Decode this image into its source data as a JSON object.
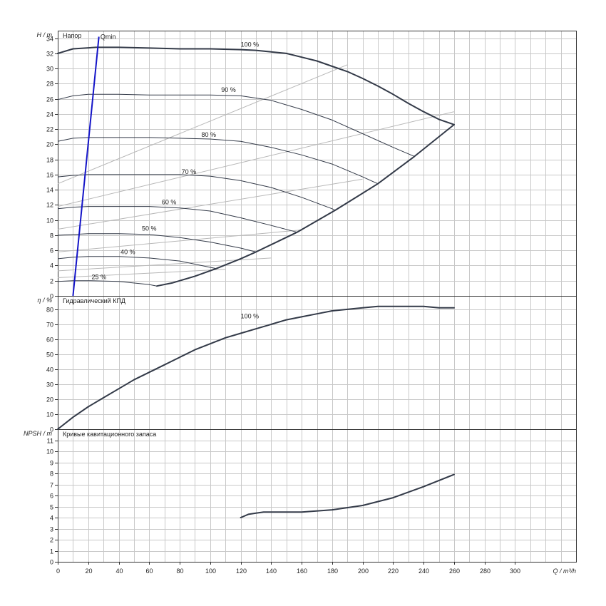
{
  "chart_data": {
    "type": "line",
    "x_axis": {
      "label": "Q / m³/h",
      "min": 0,
      "max": 340,
      "ticks": [
        0,
        20,
        40,
        60,
        80,
        100,
        120,
        140,
        160,
        180,
        200,
        220,
        240,
        260,
        280,
        300
      ],
      "grid_step": 10
    },
    "panels": [
      {
        "id": "head",
        "title": "Напор",
        "ylabel": "H / m",
        "ylim": [
          0,
          35
        ],
        "yticks": [
          0,
          2,
          4,
          6,
          8,
          10,
          12,
          14,
          16,
          18,
          20,
          22,
          24,
          26,
          28,
          30,
          32,
          34
        ],
        "series": [
          {
            "label": "100 %",
            "label_at": [
              126,
              32.9
            ],
            "x": [
              0,
              10,
              25,
              40,
              60,
              80,
              100,
              120,
              130,
              140,
              150,
              160,
              170,
              180,
              190,
              200,
              210,
              220,
              230,
              240,
              250,
              260
            ],
            "y": [
              32,
              32.6,
              32.8,
              32.8,
              32.7,
              32.6,
              32.6,
              32.5,
              32.4,
              32.2,
              32.0,
              31.5,
              31.0,
              30.3,
              29.6,
              28.7,
              27.7,
              26.6,
              25.4,
              24.3,
              23.3,
              22.6
            ]
          },
          {
            "label": "90 %",
            "label_at": [
              112,
              26.9
            ],
            "x": [
              0,
              10,
              20,
              40,
              60,
              80,
              100,
              120,
              140,
              160,
              180,
              200,
              220,
              234
            ],
            "y": [
              25.9,
              26.4,
              26.6,
              26.6,
              26.5,
              26.5,
              26.5,
              26.4,
              25.8,
              24.6,
              23.2,
              21.4,
              19.6,
              18.4
            ]
          },
          {
            "label": "80 %",
            "label_at": [
              99,
              21.0
            ],
            "x": [
              0,
              10,
              20,
              40,
              60,
              80,
              100,
              120,
              140,
              160,
              180,
              200,
              210
            ],
            "y": [
              20.4,
              20.8,
              20.9,
              20.9,
              20.9,
              20.8,
              20.7,
              20.4,
              19.6,
              18.6,
              17.4,
              15.7,
              14.8
            ]
          },
          {
            "label": "70 %",
            "label_at": [
              86,
              16.1
            ],
            "x": [
              0,
              10,
              20,
              40,
              60,
              80,
              100,
              120,
              140,
              160,
              180,
              182
            ],
            "y": [
              15.7,
              15.9,
              16.0,
              16.0,
              16.0,
              16.0,
              15.8,
              15.2,
              14.3,
              13.0,
              11.5,
              11.3
            ]
          },
          {
            "label": "60 %",
            "label_at": [
              73,
              12.1
            ],
            "x": [
              0,
              10,
              20,
              40,
              60,
              80,
              100,
              120,
              140,
              157
            ],
            "y": [
              11.5,
              11.7,
              11.8,
              11.8,
              11.8,
              11.6,
              11.2,
              10.3,
              9.3,
              8.4
            ]
          },
          {
            "label": "50 %",
            "label_at": [
              60,
              8.6
            ],
            "x": [
              0,
              10,
              20,
              40,
              60,
              80,
              100,
              120,
              130
            ],
            "y": [
              8.0,
              8.1,
              8.2,
              8.2,
              8.1,
              7.7,
              7.1,
              6.3,
              5.8
            ]
          },
          {
            "label": "40 %",
            "label_at": [
              46,
              5.5
            ],
            "x": [
              0,
              10,
              20,
              40,
              60,
              80,
              104
            ],
            "y": [
              4.9,
              5.1,
              5.2,
              5.2,
              5.0,
              4.6,
              3.6
            ]
          },
          {
            "label": "25 %",
            "label_at": [
              27,
              2.2
            ],
            "x": [
              0,
              10,
              20,
              40,
              60,
              65
            ],
            "y": [
              1.9,
              2.0,
              2.0,
              1.9,
              1.5,
              1.3
            ]
          },
          {
            "label": "",
            "x": [
              65,
              75,
              90,
              104,
              120,
              130,
              157,
              182,
              210,
              234,
              260
            ],
            "y": [
              1.3,
              1.7,
              2.6,
              3.6,
              4.9,
              5.8,
              8.4,
              11.3,
              14.8,
              18.4,
              22.6
            ]
          },
          {
            "label": "Qmin",
            "label_at": [
              28,
              33.9
            ],
            "x": [
              10,
              27
            ],
            "y": [
              0,
              34.2
            ]
          }
        ],
        "iso_lines": [
          {
            "x": [
              0,
              190
            ],
            "y": [
              14.8,
              30.5
            ]
          },
          {
            "x": [
              0,
              260
            ],
            "y": [
              11.8,
              24.3
            ]
          },
          {
            "x": [
              0,
              200
            ],
            "y": [
              8.8,
              15.4
            ]
          },
          {
            "x": [
              0,
              160
            ],
            "y": [
              5.8,
              8.7
            ]
          },
          {
            "x": [
              0,
              140
            ],
            "y": [
              3.3,
              5.0
            ]
          },
          {
            "x": [
              0,
              110
            ],
            "y": [
              2.4,
              3.5
            ]
          }
        ]
      },
      {
        "id": "efficiency",
        "title": "Гидравлический КПД",
        "ylabel": "η / %",
        "ylim": [
          0,
          89
        ],
        "yticks": [
          0,
          10,
          20,
          30,
          40,
          50,
          60,
          70,
          80
        ],
        "series": [
          {
            "label": "100 %",
            "label_at": [
              126,
              74
            ],
            "x": [
              0,
              10,
              20,
              30,
              40,
              50,
              60,
              70,
              80,
              90,
              100,
              110,
              120,
              130,
              140,
              150,
              160,
              170,
              180,
              190,
              200,
              210,
              220,
              230,
              240,
              250,
              260
            ],
            "y": [
              0,
              8,
              15,
              21,
              27,
              33,
              38,
              43,
              48,
              53,
              57,
              61,
              64,
              67,
              70,
              73,
              75,
              77,
              79,
              80,
              81,
              82,
              82,
              82,
              82,
              81,
              81
            ]
          }
        ]
      },
      {
        "id": "npsh",
        "title": "Кривые кавитационного запаса",
        "ylabel": "NPSH / m",
        "ylim": [
          0,
          12
        ],
        "yticks": [
          0,
          1,
          2,
          3,
          4,
          5,
          6,
          7,
          8,
          9,
          10,
          11
        ],
        "series": [
          {
            "label": "",
            "x": [
              120,
              125,
              130,
              135,
              140,
              160,
              180,
              200,
              220,
              240,
              260
            ],
            "y": [
              4.0,
              4.3,
              4.4,
              4.5,
              4.5,
              4.5,
              4.7,
              5.1,
              5.8,
              6.8,
              7.9
            ]
          }
        ]
      }
    ],
    "grid": true
  }
}
